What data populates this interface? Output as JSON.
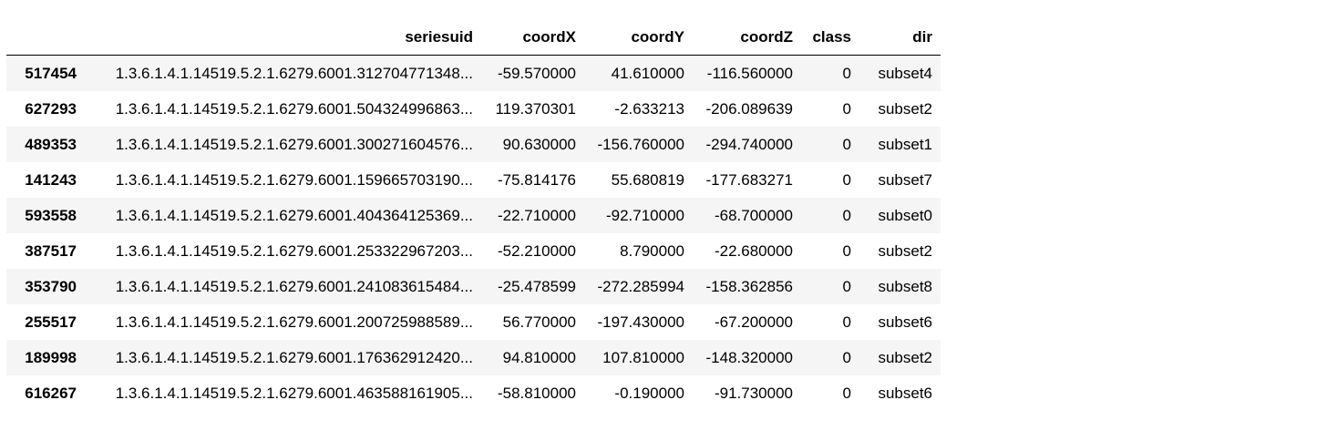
{
  "table": {
    "index_header": "",
    "columns": [
      "seriesuid",
      "coordX",
      "coordY",
      "coordZ",
      "class",
      "dir"
    ],
    "rows": [
      {
        "index": "517454",
        "cells": [
          "1.3.6.1.4.1.14519.5.2.1.6279.6001.312704771348...",
          "-59.570000",
          "41.610000",
          "-116.560000",
          "0",
          "subset4"
        ]
      },
      {
        "index": "627293",
        "cells": [
          "1.3.6.1.4.1.14519.5.2.1.6279.6001.504324996863...",
          "119.370301",
          "-2.633213",
          "-206.089639",
          "0",
          "subset2"
        ]
      },
      {
        "index": "489353",
        "cells": [
          "1.3.6.1.4.1.14519.5.2.1.6279.6001.300271604576...",
          "90.630000",
          "-156.760000",
          "-294.740000",
          "0",
          "subset1"
        ]
      },
      {
        "index": "141243",
        "cells": [
          "1.3.6.1.4.1.14519.5.2.1.6279.6001.159665703190...",
          "-75.814176",
          "55.680819",
          "-177.683271",
          "0",
          "subset7"
        ]
      },
      {
        "index": "593558",
        "cells": [
          "1.3.6.1.4.1.14519.5.2.1.6279.6001.404364125369...",
          "-22.710000",
          "-92.710000",
          "-68.700000",
          "0",
          "subset0"
        ]
      },
      {
        "index": "387517",
        "cells": [
          "1.3.6.1.4.1.14519.5.2.1.6279.6001.253322967203...",
          "-52.210000",
          "8.790000",
          "-22.680000",
          "0",
          "subset2"
        ]
      },
      {
        "index": "353790",
        "cells": [
          "1.3.6.1.4.1.14519.5.2.1.6279.6001.241083615484...",
          "-25.478599",
          "-272.285994",
          "-158.362856",
          "0",
          "subset8"
        ]
      },
      {
        "index": "255517",
        "cells": [
          "1.3.6.1.4.1.14519.5.2.1.6279.6001.200725988589...",
          "56.770000",
          "-197.430000",
          "-67.200000",
          "0",
          "subset6"
        ]
      },
      {
        "index": "189998",
        "cells": [
          "1.3.6.1.4.1.14519.5.2.1.6279.6001.176362912420...",
          "94.810000",
          "107.810000",
          "-148.320000",
          "0",
          "subset2"
        ]
      },
      {
        "index": "616267",
        "cells": [
          "1.3.6.1.4.1.14519.5.2.1.6279.6001.463588161905...",
          "-58.810000",
          "-0.190000",
          "-91.730000",
          "0",
          "subset6"
        ]
      }
    ]
  }
}
